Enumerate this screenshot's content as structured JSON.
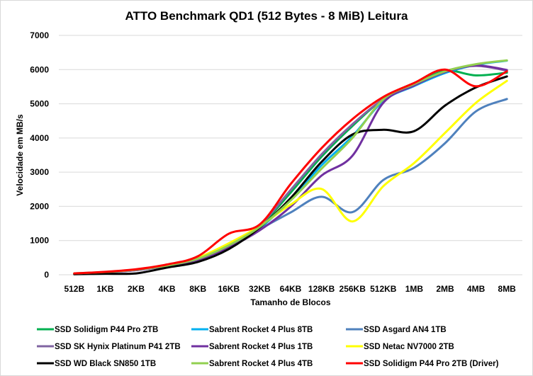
{
  "chart_data": {
    "type": "line",
    "title": "ATTO Benchmark QD1 (512 Bytes - 8 MiB) Leitura",
    "xlabel": "Tamanho de Blocos",
    "ylabel": "Velocidade em MB/s",
    "ylim": [
      0,
      7000
    ],
    "yticks": [
      0,
      1000,
      2000,
      3000,
      4000,
      5000,
      6000,
      7000
    ],
    "grid": true,
    "legend_position": "bottom",
    "categories": [
      "512B",
      "1KB",
      "2KB",
      "4KB",
      "8KB",
      "16KB",
      "32KB",
      "64KB",
      "128KB",
      "256KB",
      "512KB",
      "1MB",
      "2MB",
      "4MB",
      "8MB"
    ],
    "series": [
      {
        "name": "SSD Solidigm P44 Pro 2TB",
        "color": "#00b050",
        "values": [
          35,
          75,
          140,
          270,
          480,
          880,
          1420,
          2400,
          3450,
          4350,
          5130,
          5560,
          5960,
          5830,
          5910
        ]
      },
      {
        "name": "Sabrent Rocket 4 Plus 8TB",
        "color": "#00b0f0",
        "values": [
          35,
          75,
          140,
          265,
          460,
          830,
          1360,
          2200,
          3200,
          4050,
          5080,
          5520,
          5900,
          6140,
          6260
        ]
      },
      {
        "name": "SSD Asgard AN4 1TB",
        "color": "#4f81bd",
        "values": [
          30,
          70,
          135,
          260,
          450,
          820,
          1330,
          1820,
          2280,
          1830,
          2770,
          3130,
          3850,
          4780,
          5140
        ]
      },
      {
        "name": "SSD SK Hynix Platinum P41 2TB",
        "color": "#8064a2",
        "values": [
          35,
          78,
          145,
          275,
          490,
          900,
          1450,
          2480,
          3520,
          4400,
          5130,
          5540,
          5950,
          6110,
          5970
        ]
      },
      {
        "name": "Sabrent Rocket 4 Plus 1TB",
        "color": "#7030a0",
        "values": [
          30,
          70,
          135,
          255,
          440,
          800,
          1300,
          1990,
          2900,
          3480,
          5030,
          5540,
          5930,
          6120,
          5990
        ]
      },
      {
        "name": "SSD Netac NV7000 2TB",
        "color": "#ffff00",
        "values": [
          35,
          78,
          150,
          280,
          500,
          920,
          1420,
          2050,
          2510,
          1560,
          2590,
          3270,
          4150,
          5030,
          5670
        ]
      },
      {
        "name": "SSD WD Black SN850 1TB",
        "color": "#000000",
        "values": [
          15,
          30,
          40,
          210,
          375,
          750,
          1380,
          2240,
          3300,
          4100,
          4240,
          4200,
          4950,
          5480,
          5800
        ]
      },
      {
        "name": "Sabrent Rocket 4 Plus 4TB",
        "color": "#92d050",
        "values": [
          40,
          80,
          150,
          270,
          470,
          860,
          1400,
          2170,
          3100,
          4000,
          5130,
          5580,
          5950,
          6160,
          6270
        ]
      },
      {
        "name": "SSD Solidigm P44 Pro 2TB (Driver)",
        "color": "#ff0000",
        "values": [
          40,
          85,
          160,
          300,
          540,
          1200,
          1470,
          2650,
          3700,
          4550,
          5200,
          5610,
          6000,
          5510,
          5950
        ]
      }
    ]
  }
}
